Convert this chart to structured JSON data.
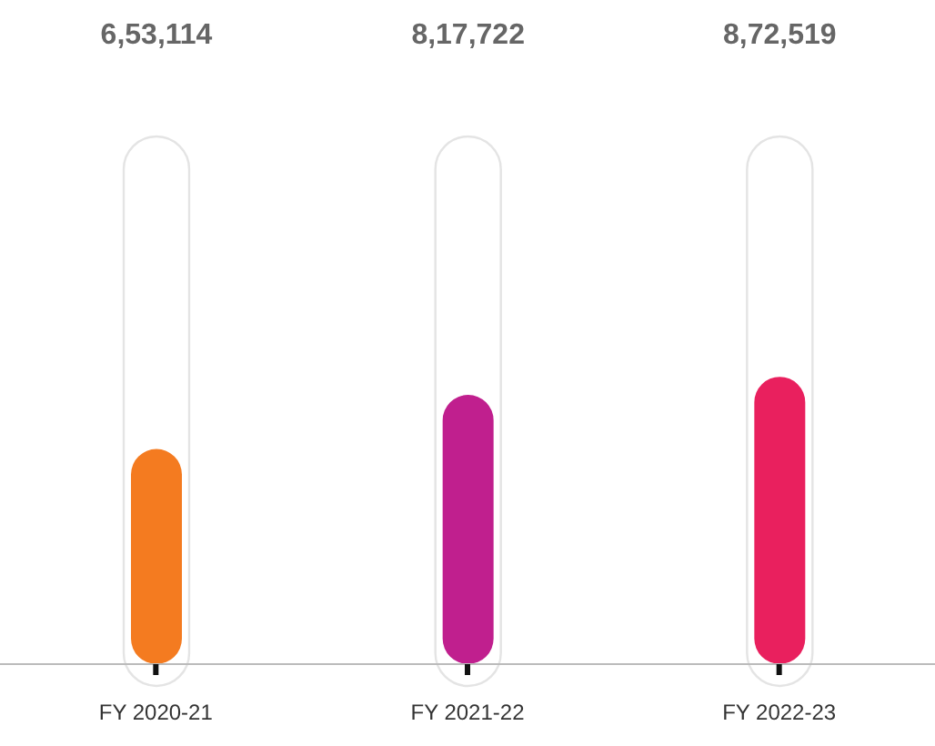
{
  "chart_data": {
    "type": "bar",
    "categories": [
      "FY 2020-21",
      "FY 2021-22",
      "FY 2022-23"
    ],
    "values": [
      653114,
      817722,
      872519
    ],
    "value_labels": [
      "6,53,114",
      "8,17,722",
      "8,72,519"
    ],
    "colors": [
      "#f47b20",
      "#c01f8e",
      "#e9205e"
    ]
  }
}
